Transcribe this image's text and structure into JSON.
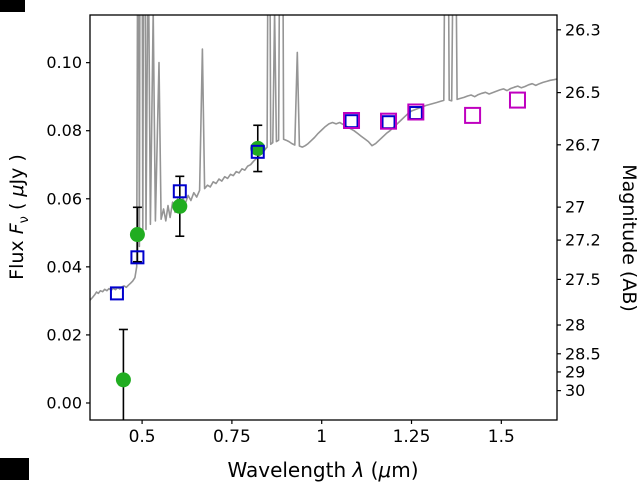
{
  "labels": {
    "y_prefix": "Flux ",
    "y_symbol": "F",
    "y_sub": "ν",
    "y_open": " ( ",
    "y_mu": "μ",
    "y_close": "Jy )",
    "x_prefix": "Wavelength ",
    "x_lambda": "λ",
    "x_open": " (",
    "x_mu": "μ",
    "x_close": "m)",
    "y2": "Magnitude (AB)"
  },
  "chart_data": {
    "type": "line+scatter",
    "title": "",
    "xlabel": "Wavelength λ (μm)",
    "ylabel": "Flux F_ν ( μJy )",
    "y2label": "Magnitude (AB)",
    "xlim": [
      0.355,
      1.655
    ],
    "ylim": [
      -0.005,
      0.114
    ],
    "grid": false,
    "legend": "none",
    "x_ticks": [
      0.5,
      0.75,
      1.0,
      1.25,
      1.5
    ],
    "x_tick_labels": [
      "0.5",
      "0.75",
      "1",
      "1.25",
      "1.5"
    ],
    "y_ticks": [
      0.0,
      0.02,
      0.04,
      0.06,
      0.08,
      0.1
    ],
    "y_tick_labels": [
      "0.00",
      "0.02",
      "0.04",
      "0.06",
      "0.08",
      "0.10"
    ],
    "y2_ticks_mag": [
      26.3,
      26.5,
      26.7,
      27.0,
      27.2,
      27.5,
      28.0,
      28.5,
      29.0,
      30.0
    ],
    "y2_tick_labels": [
      "26.3",
      "26.5",
      "26.7",
      "27",
      "27.2",
      "27.5",
      "28",
      "28.5",
      "29",
      "30"
    ],
    "mag_zeropoint": 23.9,
    "colors": {
      "spectrum": "#959595",
      "observed": "#21ad21",
      "model_blue": "#0000cd",
      "model_magenta": "#bf00bf",
      "errorbar": "#000000",
      "axis": "#000000"
    },
    "series": [
      {
        "name": "model_spectrum",
        "type": "line",
        "color": "#959595",
        "points": [
          [
            0.355,
            0.0302
          ],
          [
            0.362,
            0.031
          ],
          [
            0.368,
            0.0318
          ],
          [
            0.373,
            0.0326
          ],
          [
            0.378,
            0.0322
          ],
          [
            0.384,
            0.033
          ],
          [
            0.39,
            0.0327
          ],
          [
            0.396,
            0.0334
          ],
          [
            0.402,
            0.033
          ],
          [
            0.408,
            0.0336
          ],
          [
            0.414,
            0.0331
          ],
          [
            0.42,
            0.0337
          ],
          [
            0.426,
            0.0333
          ],
          [
            0.432,
            0.0339
          ],
          [
            0.438,
            0.0335
          ],
          [
            0.444,
            0.0341
          ],
          [
            0.45,
            0.0344
          ],
          [
            0.456,
            0.034
          ],
          [
            0.462,
            0.0346
          ],
          [
            0.468,
            0.0352
          ],
          [
            0.474,
            0.0358
          ],
          [
            0.48,
            0.0368
          ],
          [
            0.485,
            0.04
          ],
          [
            0.489,
            0.18
          ],
          [
            0.4925,
            0.046
          ],
          [
            0.497,
            0.3
          ],
          [
            0.502,
            0.049
          ],
          [
            0.506,
            0.22
          ],
          [
            0.511,
            0.051
          ],
          [
            0.517,
            0.14
          ],
          [
            0.523,
            0.0525
          ],
          [
            0.531,
            0.115
          ],
          [
            0.537,
            0.0535
          ],
          [
            0.547,
            0.1
          ],
          [
            0.553,
            0.054
          ],
          [
            0.56,
            0.057
          ],
          [
            0.566,
            0.0535
          ],
          [
            0.572,
            0.058
          ],
          [
            0.578,
            0.0545
          ],
          [
            0.585,
            0.059
          ],
          [
            0.592,
            0.056
          ],
          [
            0.599,
            0.06
          ],
          [
            0.606,
            0.0575
          ],
          [
            0.613,
            0.0605
          ],
          [
            0.62,
            0.0585
          ],
          [
            0.628,
            0.061
          ],
          [
            0.636,
            0.0595
          ],
          [
            0.644,
            0.0618
          ],
          [
            0.652,
            0.0605
          ],
          [
            0.66,
            0.0625
          ],
          [
            0.668,
            0.104
          ],
          [
            0.674,
            0.063
          ],
          [
            0.682,
            0.064
          ],
          [
            0.69,
            0.0635
          ],
          [
            0.698,
            0.065
          ],
          [
            0.706,
            0.0645
          ],
          [
            0.714,
            0.0658
          ],
          [
            0.722,
            0.0652
          ],
          [
            0.73,
            0.0665
          ],
          [
            0.738,
            0.066
          ],
          [
            0.746,
            0.0672
          ],
          [
            0.754,
            0.0668
          ],
          [
            0.762,
            0.068
          ],
          [
            0.77,
            0.0676
          ],
          [
            0.778,
            0.0688
          ],
          [
            0.786,
            0.0684
          ],
          [
            0.794,
            0.0696
          ],
          [
            0.802,
            0.07
          ],
          [
            0.81,
            0.071
          ],
          [
            0.818,
            0.0718
          ],
          [
            0.826,
            0.0726
          ],
          [
            0.834,
            0.0734
          ],
          [
            0.842,
            0.0744
          ],
          [
            0.848,
            0.0752
          ],
          [
            0.853,
            0.2
          ],
          [
            0.858,
            0.076
          ],
          [
            0.864,
            0.0765
          ],
          [
            0.869,
            0.115
          ],
          [
            0.874,
            0.0768
          ],
          [
            0.88,
            0.0772
          ],
          [
            0.888,
            0.24
          ],
          [
            0.894,
            0.0775
          ],
          [
            0.901,
            0.0772
          ],
          [
            0.909,
            0.0768
          ],
          [
            0.917,
            0.0762
          ],
          [
            0.925,
            0.0758
          ],
          [
            0.932,
            0.103
          ],
          [
            0.938,
            0.0755
          ],
          [
            0.946,
            0.0752
          ],
          [
            0.954,
            0.0756
          ],
          [
            0.962,
            0.0762
          ],
          [
            0.97,
            0.077
          ],
          [
            0.98,
            0.078
          ],
          [
            0.99,
            0.0792
          ],
          [
            1.0,
            0.0802
          ],
          [
            1.01,
            0.0812
          ],
          [
            1.02,
            0.082
          ],
          [
            1.03,
            0.0824
          ],
          [
            1.04,
            0.082
          ],
          [
            1.05,
            0.0824
          ],
          [
            1.06,
            0.0818
          ],
          [
            1.07,
            0.0812
          ],
          [
            1.08,
            0.0806
          ],
          [
            1.09,
            0.08
          ],
          [
            1.1,
            0.0792
          ],
          [
            1.11,
            0.0784
          ],
          [
            1.12,
            0.0776
          ],
          [
            1.13,
            0.0768
          ],
          [
            1.14,
            0.0756
          ],
          [
            1.15,
            0.0762
          ],
          [
            1.16,
            0.0772
          ],
          [
            1.17,
            0.0782
          ],
          [
            1.18,
            0.0792
          ],
          [
            1.19,
            0.08
          ],
          [
            1.2,
            0.081
          ],
          [
            1.21,
            0.082
          ],
          [
            1.22,
            0.083
          ],
          [
            1.23,
            0.084
          ],
          [
            1.24,
            0.085
          ],
          [
            1.25,
            0.0858
          ],
          [
            1.26,
            0.0862
          ],
          [
            1.27,
            0.0866
          ],
          [
            1.28,
            0.087
          ],
          [
            1.29,
            0.0874
          ],
          [
            1.3,
            0.0877
          ],
          [
            1.31,
            0.088
          ],
          [
            1.32,
            0.0883
          ],
          [
            1.33,
            0.0886
          ],
          [
            1.34,
            0.0889
          ],
          [
            1.348,
            0.22
          ],
          [
            1.355,
            0.089
          ],
          [
            1.362,
            0.0888
          ],
          [
            1.37,
            0.18
          ],
          [
            1.377,
            0.0892
          ],
          [
            1.386,
            0.0895
          ],
          [
            1.396,
            0.0898
          ],
          [
            1.406,
            0.0902
          ],
          [
            1.416,
            0.0905
          ],
          [
            1.426,
            0.09
          ],
          [
            1.436,
            0.0906
          ],
          [
            1.446,
            0.091
          ],
          [
            1.456,
            0.0913
          ],
          [
            1.466,
            0.0908
          ],
          [
            1.476,
            0.0912
          ],
          [
            1.486,
            0.0916
          ],
          [
            1.496,
            0.092
          ],
          [
            1.506,
            0.0923
          ],
          [
            1.516,
            0.0918
          ],
          [
            1.526,
            0.0924
          ],
          [
            1.536,
            0.0928
          ],
          [
            1.546,
            0.0931
          ],
          [
            1.556,
            0.0926
          ],
          [
            1.566,
            0.093
          ],
          [
            1.576,
            0.0935
          ],
          [
            1.586,
            0.0938
          ],
          [
            1.596,
            0.0933
          ],
          [
            1.606,
            0.0938
          ],
          [
            1.616,
            0.0942
          ],
          [
            1.626,
            0.0945
          ],
          [
            1.636,
            0.0948
          ],
          [
            1.646,
            0.095
          ],
          [
            1.655,
            0.0952
          ]
        ]
      },
      {
        "name": "observed_photometry",
        "type": "scatter",
        "marker": "filled-circle",
        "color": "#21ad21",
        "points": [
          {
            "x": 0.448,
            "y": 0.0068,
            "yerr": 0.0148
          },
          {
            "x": 0.487,
            "y": 0.0495,
            "yerr": 0.008
          },
          {
            "x": 0.605,
            "y": 0.0578,
            "yerr": 0.0088
          },
          {
            "x": 0.822,
            "y": 0.0748,
            "yerr": 0.0068
          }
        ]
      },
      {
        "name": "model_photometry_blue",
        "type": "scatter",
        "marker": "open-square",
        "color": "#0000cd",
        "points": [
          {
            "x": 0.43,
            "y": 0.0322
          },
          {
            "x": 0.487,
            "y": 0.0428
          },
          {
            "x": 0.605,
            "y": 0.0622
          },
          {
            "x": 0.822,
            "y": 0.0738
          },
          {
            "x": 1.083,
            "y": 0.0828
          },
          {
            "x": 1.186,
            "y": 0.0825
          },
          {
            "x": 1.262,
            "y": 0.0852
          }
        ]
      },
      {
        "name": "model_photometry_magenta",
        "type": "scatter",
        "marker": "open-square",
        "color": "#bf00bf",
        "points": [
          {
            "x": 1.083,
            "y": 0.083
          },
          {
            "x": 1.186,
            "y": 0.0828
          },
          {
            "x": 1.262,
            "y": 0.0855
          },
          {
            "x": 1.42,
            "y": 0.0845
          },
          {
            "x": 1.545,
            "y": 0.089
          }
        ]
      }
    ]
  }
}
